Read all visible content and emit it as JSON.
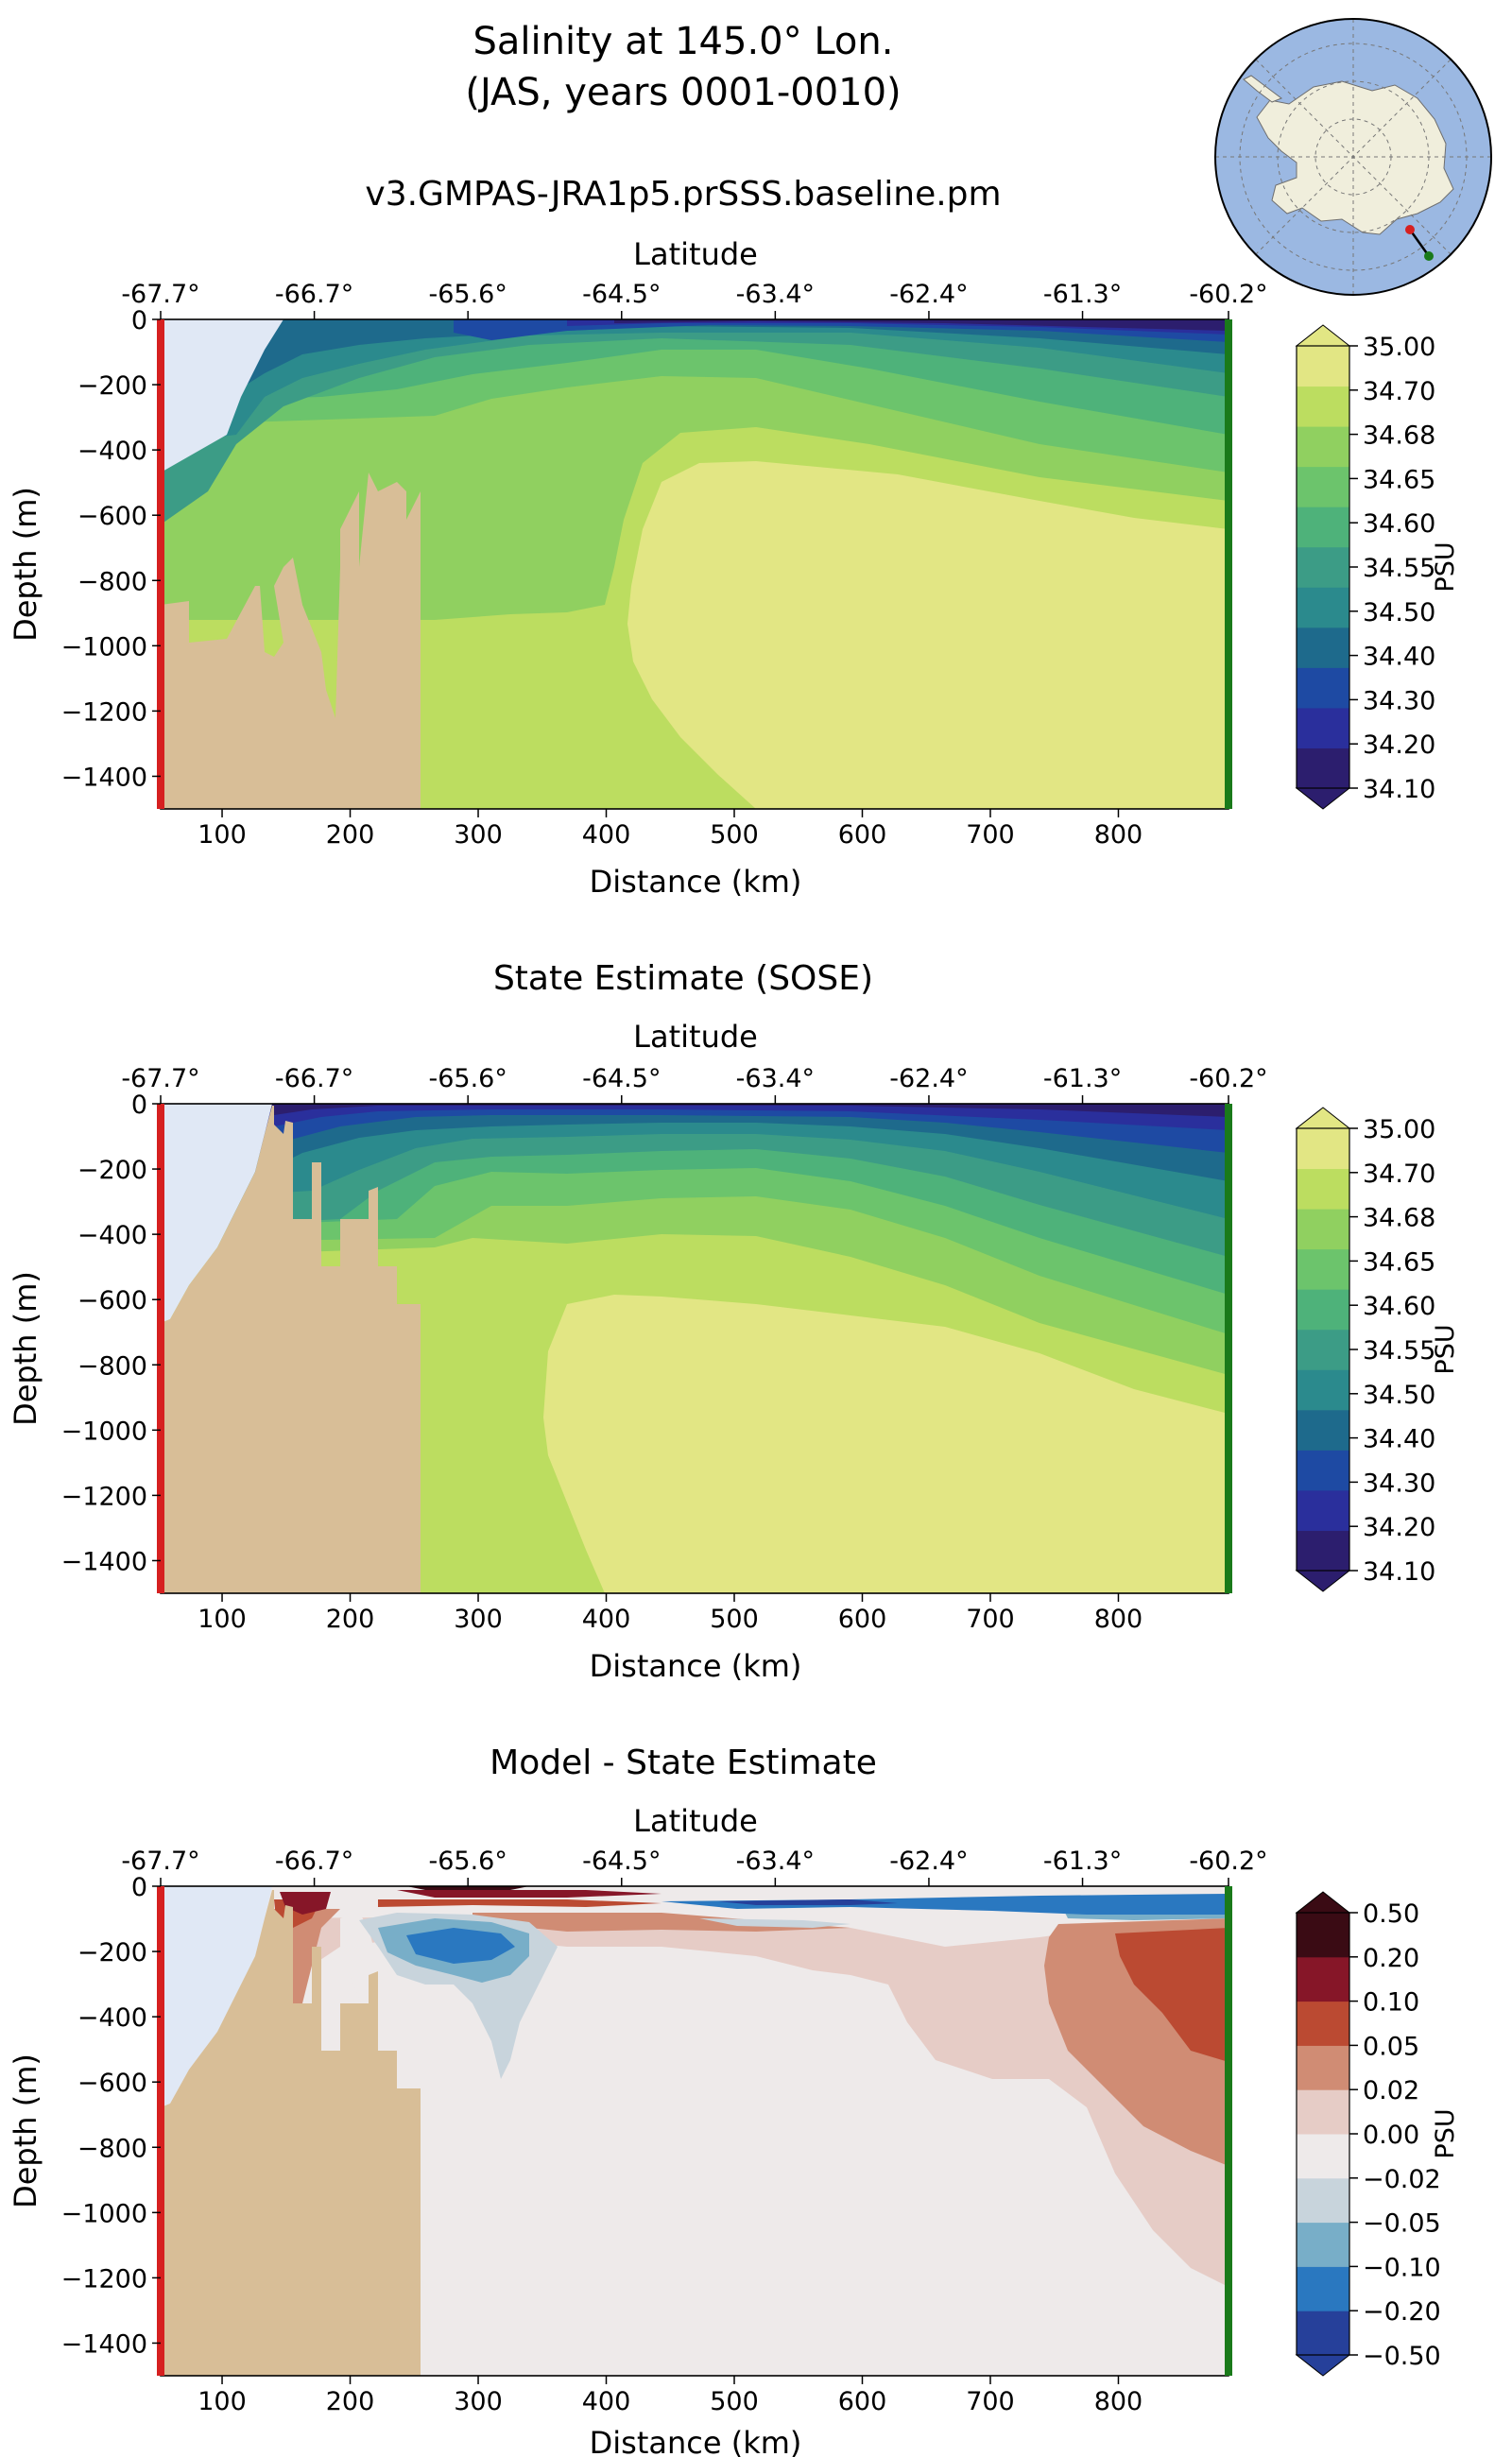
{
  "figure": {
    "title_line1": "Salinity at 145.0° Lon.",
    "title_line2": "(JAS, years 0001-0010)"
  },
  "colors": {
    "land": "#d8be97",
    "ice_shelf": "#e0e8f5",
    "start_marker": "#d62020",
    "end_marker": "#1a7a1a",
    "map_ocean": "#9bb8e2",
    "map_land": "#f0eedc"
  },
  "chart_data": [
    {
      "type": "heatmap",
      "panel": "model",
      "title": "v3.GMPAS-JRA1p5.prSSS.baseline.pm",
      "xlabel": "Distance (km)",
      "ylabel": "Depth (m)",
      "x2label": "Latitude",
      "xlim": [
        52,
        886
      ],
      "ylim": [
        -1500,
        0
      ],
      "x_ticks": [
        100,
        200,
        300,
        400,
        500,
        600,
        700,
        800
      ],
      "y_ticks": [
        0,
        -200,
        -400,
        -600,
        -800,
        -1000,
        -1200,
        -1400
      ],
      "lat_tick_labels": [
        "-67.7°",
        "-66.7°",
        "-65.6°",
        "-64.5°",
        "-63.4°",
        "-62.4°",
        "-61.3°",
        "-60.2°"
      ],
      "lat_tick_distance_km": [
        52,
        172,
        292,
        412,
        532,
        652,
        772,
        886
      ],
      "colorbar": {
        "label": "PSU",
        "levels": [
          34.1,
          34.2,
          34.3,
          34.4,
          34.5,
          34.55,
          34.6,
          34.65,
          34.68,
          34.7,
          35.0
        ],
        "level_labels": [
          "34.10",
          "34.20",
          "34.30",
          "34.40",
          "34.50",
          "34.55",
          "34.60",
          "34.65",
          "34.68",
          "34.70",
          "35.00"
        ],
        "colors": [
          "#2c1e6e",
          "#2a2f9c",
          "#1e4aa3",
          "#1e6a8c",
          "#2b8a8d",
          "#3c9c86",
          "#4eb27a",
          "#6cc46c",
          "#90d060",
          "#bcdd60",
          "#e2e684"
        ],
        "extend": "both"
      }
    },
    {
      "type": "heatmap",
      "panel": "sose",
      "title": "State Estimate (SOSE)",
      "xlabel": "Distance (km)",
      "ylabel": "Depth (m)",
      "x2label": "Latitude",
      "xlim": [
        52,
        886
      ],
      "ylim": [
        -1500,
        0
      ],
      "x_ticks": [
        100,
        200,
        300,
        400,
        500,
        600,
        700,
        800
      ],
      "y_ticks": [
        0,
        -200,
        -400,
        -600,
        -800,
        -1000,
        -1200,
        -1400
      ],
      "lat_tick_labels": [
        "-67.7°",
        "-66.7°",
        "-65.6°",
        "-64.5°",
        "-63.4°",
        "-62.4°",
        "-61.3°",
        "-60.2°"
      ],
      "lat_tick_distance_km": [
        52,
        172,
        292,
        412,
        532,
        652,
        772,
        886
      ],
      "colorbar": {
        "label": "PSU",
        "levels": [
          34.1,
          34.2,
          34.3,
          34.4,
          34.5,
          34.55,
          34.6,
          34.65,
          34.68,
          34.7,
          35.0
        ],
        "level_labels": [
          "34.10",
          "34.20",
          "34.30",
          "34.40",
          "34.50",
          "34.55",
          "34.60",
          "34.65",
          "34.68",
          "34.70",
          "35.00"
        ],
        "colors": [
          "#2c1e6e",
          "#2a2f9c",
          "#1e4aa3",
          "#1e6a8c",
          "#2b8a8d",
          "#3c9c86",
          "#4eb27a",
          "#6cc46c",
          "#90d060",
          "#bcdd60",
          "#e2e684"
        ],
        "extend": "both"
      }
    },
    {
      "type": "heatmap",
      "panel": "diff",
      "title": "Model - State Estimate",
      "xlabel": "Distance (km)",
      "ylabel": "Depth (m)",
      "x2label": "Latitude",
      "xlim": [
        52,
        886
      ],
      "ylim": [
        -1500,
        0
      ],
      "x_ticks": [
        100,
        200,
        300,
        400,
        500,
        600,
        700,
        800
      ],
      "y_ticks": [
        0,
        -200,
        -400,
        -600,
        -800,
        -1000,
        -1200,
        -1400
      ],
      "lat_tick_labels": [
        "-67.7°",
        "-66.7°",
        "-65.6°",
        "-64.5°",
        "-63.4°",
        "-62.4°",
        "-61.3°",
        "-60.2°"
      ],
      "lat_tick_distance_km": [
        52,
        172,
        292,
        412,
        532,
        652,
        772,
        886
      ],
      "colorbar": {
        "label": "PSU",
        "levels": [
          -0.5,
          -0.2,
          -0.1,
          -0.05,
          -0.02,
          0.0,
          0.02,
          0.05,
          0.1,
          0.2,
          0.5
        ],
        "level_labels": [
          "−0.50",
          "−0.20",
          "−0.10",
          "−0.05",
          "−0.02",
          "0.00",
          "0.02",
          "0.05",
          "0.10",
          "0.20",
          "0.50"
        ],
        "colors": [
          "#26409a",
          "#2a78c0",
          "#78aec8",
          "#c8d4dc",
          "#eeeaea",
          "#e6ccc6",
          "#d08c74",
          "#bb4a32",
          "#861628",
          "#3a0b14"
        ],
        "extend": "both"
      }
    }
  ]
}
